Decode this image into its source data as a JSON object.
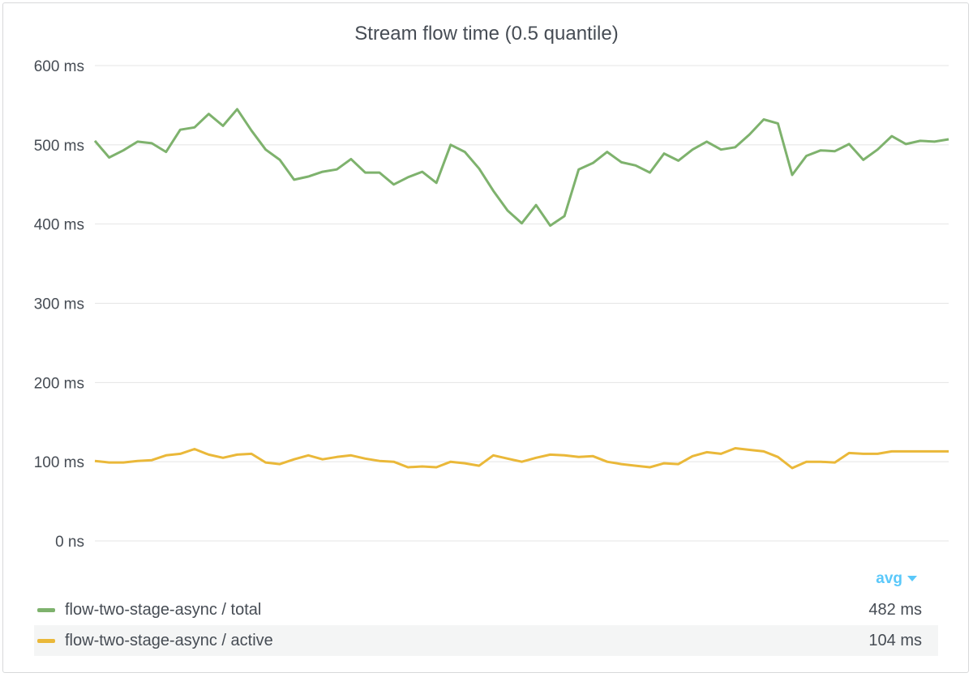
{
  "panel": {
    "title": "Stream flow time (0.5 quantile)"
  },
  "legend": {
    "sort_label": "avg",
    "rows": [
      {
        "label": "flow-two-stage-async / total",
        "value": "482 ms",
        "color": "#7eb26d"
      },
      {
        "label": "flow-two-stage-async / active",
        "value": "104 ms",
        "color": "#eab839"
      }
    ]
  },
  "chart_data": {
    "type": "line",
    "title": "Stream flow time (0.5 quantile)",
    "xlabel": "",
    "ylabel": "",
    "ylim": [
      0,
      600
    ],
    "yticks": [
      {
        "value": 600,
        "label": "600 ms"
      },
      {
        "value": 500,
        "label": "500 ms"
      },
      {
        "value": 400,
        "label": "400 ms"
      },
      {
        "value": 300,
        "label": "300 ms"
      },
      {
        "value": 200,
        "label": "200 ms"
      },
      {
        "value": 100,
        "label": "100 ms"
      },
      {
        "value": 0,
        "label": "0 ns"
      }
    ],
    "grid": true,
    "legend_position": "bottom",
    "series": [
      {
        "name": "flow-two-stage-async / total",
        "color": "#7eb26d",
        "values": [
          505,
          484,
          493,
          504,
          502,
          491,
          519,
          522,
          539,
          524,
          545,
          518,
          494,
          481,
          456,
          460,
          466,
          469,
          482,
          465,
          465,
          450,
          459,
          466,
          452,
          500,
          491,
          470,
          442,
          417,
          401,
          424,
          398,
          410,
          469,
          477,
          491,
          478,
          474,
          465,
          489,
          480,
          494,
          504,
          494,
          497,
          513,
          532,
          527,
          462,
          486,
          493,
          492,
          501,
          481,
          494,
          511,
          501,
          505,
          504,
          507
        ]
      },
      {
        "name": "flow-two-stage-async / active",
        "color": "#eab839",
        "values": [
          101,
          99,
          99,
          101,
          102,
          108,
          110,
          116,
          109,
          105,
          109,
          110,
          99,
          97,
          103,
          108,
          103,
          106,
          108,
          104,
          101,
          100,
          93,
          94,
          93,
          100,
          98,
          95,
          108,
          104,
          100,
          105,
          109,
          108,
          106,
          107,
          100,
          97,
          95,
          93,
          98,
          97,
          107,
          112,
          110,
          117,
          115,
          113,
          106,
          92,
          100,
          100,
          99,
          111,
          110,
          110,
          113,
          113,
          113,
          113,
          113
        ]
      }
    ]
  }
}
